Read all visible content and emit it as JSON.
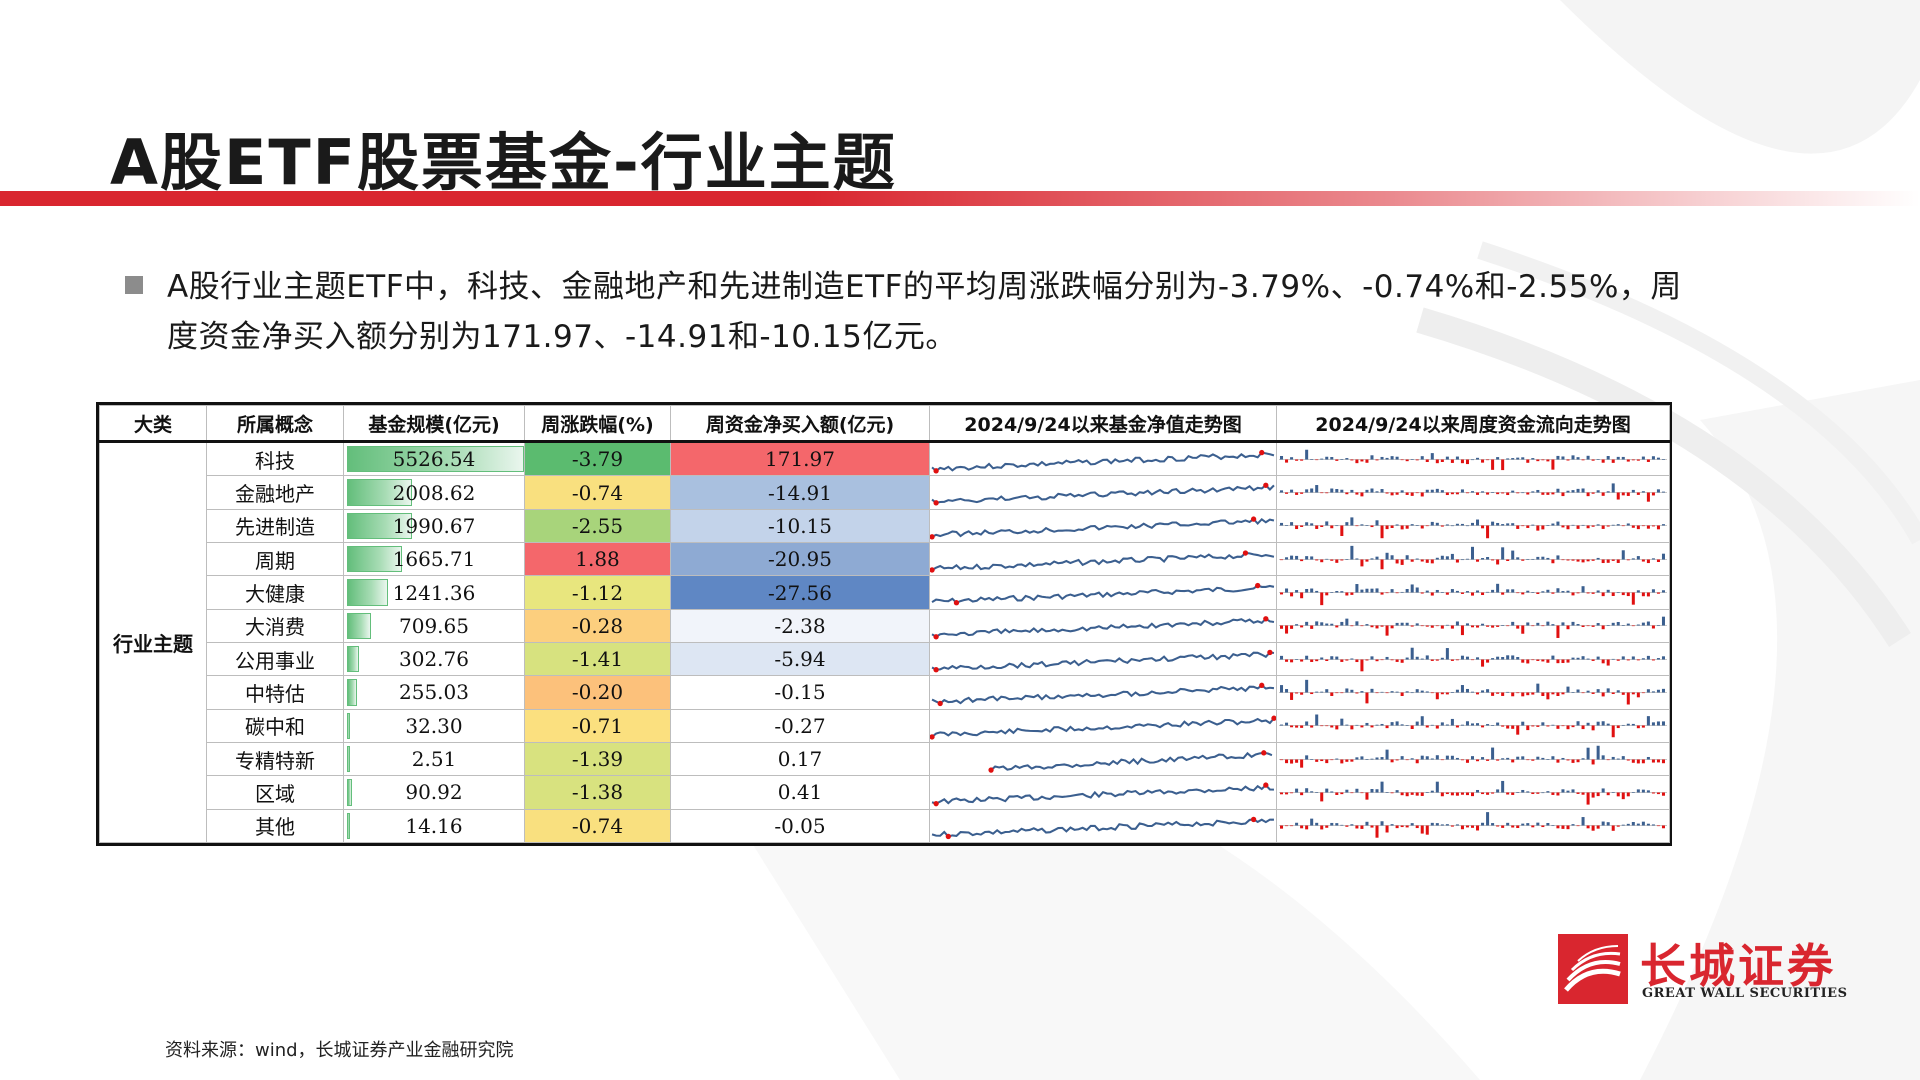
{
  "page": {
    "title": "A股ETF股票基金-行业主题",
    "bullet": "A股行业主题ETF中，科技、金融地产和先进制造ETF的平均周涨跌幅分别为-3.79%、-0.74%和-2.55%，周度资金净买入额分别为171.97、-14.91和-10.15亿元。",
    "source": "资料来源：wind，长城证券产业金融研究院"
  },
  "colors": {
    "brand_red": "#d9262f",
    "scale_bar_green": "#63be7b",
    "sparkline_blue": "#3b5f8f",
    "highlight_red": "#e01010"
  },
  "logo": {
    "cn": "长城证券",
    "en": "GREAT WALL SECURITIES"
  },
  "table": {
    "headers": [
      "大类",
      "所属概念",
      "基金规模(亿元)",
      "周涨跌幅(%)",
      "周资金净买入额(亿元)",
      "2024/9/24以来基金净值走势图",
      "2024/9/24以来周度资金流向走势图"
    ],
    "category": "行业主题",
    "rows": [
      {
        "concept": "科技",
        "scale": "5526.54",
        "scale_value": 5526.54,
        "change": "-3.79",
        "change_color": "#5bbb6f",
        "flow": "171.97",
        "flow_color": "#f4676b"
      },
      {
        "concept": "金融地产",
        "scale": "2008.62",
        "scale_value": 2008.62,
        "change": "-0.74",
        "change_color": "#f9e07f",
        "flow": "-14.91",
        "flow_color": "#a9c0df"
      },
      {
        "concept": "先进制造",
        "scale": "1990.67",
        "scale_value": 1990.67,
        "change": "-2.55",
        "change_color": "#a8d47b",
        "flow": "-10.15",
        "flow_color": "#c3d3ea"
      },
      {
        "concept": "周期",
        "scale": "1665.71",
        "scale_value": 1665.71,
        "change": "1.88",
        "change_color": "#f4676b",
        "flow": "-20.95",
        "flow_color": "#8eaad3"
      },
      {
        "concept": "大健康",
        "scale": "1241.36",
        "scale_value": 1241.36,
        "change": "-1.12",
        "change_color": "#e8e67e",
        "flow": "-27.56",
        "flow_color": "#5f87c4"
      },
      {
        "concept": "大消费",
        "scale": "709.65",
        "scale_value": 709.65,
        "change": "-0.28",
        "change_color": "#fccf7e",
        "flow": "-2.38",
        "flow_color": "#f1f4fa"
      },
      {
        "concept": "公用事业",
        "scale": "302.76",
        "scale_value": 302.76,
        "change": "-1.41",
        "change_color": "#d7e27f",
        "flow": "-5.94",
        "flow_color": "#dde6f3"
      },
      {
        "concept": "中特估",
        "scale": "255.03",
        "scale_value": 255.03,
        "change": "-0.20",
        "change_color": "#fcc17b",
        "flow": "-0.15",
        "flow_color": "#ffffff"
      },
      {
        "concept": "碳中和",
        "scale": "32.30",
        "scale_value": 32.3,
        "change": "-0.71",
        "change_color": "#fbe07f",
        "flow": "-0.27",
        "flow_color": "#ffffff"
      },
      {
        "concept": "专精特新",
        "scale": "2.51",
        "scale_value": 2.51,
        "change": "-1.39",
        "change_color": "#d8e27f",
        "flow": "0.17",
        "flow_color": "#ffffff"
      },
      {
        "concept": "区域",
        "scale": "90.92",
        "scale_value": 90.92,
        "change": "-1.38",
        "change_color": "#d8e27f",
        "flow": "0.41",
        "flow_color": "#ffffff"
      },
      {
        "concept": "其他",
        "scale": "14.16",
        "scale_value": 14.16,
        "change": "-0.74",
        "change_color": "#f9e07f",
        "flow": "-0.05",
        "flow_color": "#ffffff"
      }
    ]
  }
}
